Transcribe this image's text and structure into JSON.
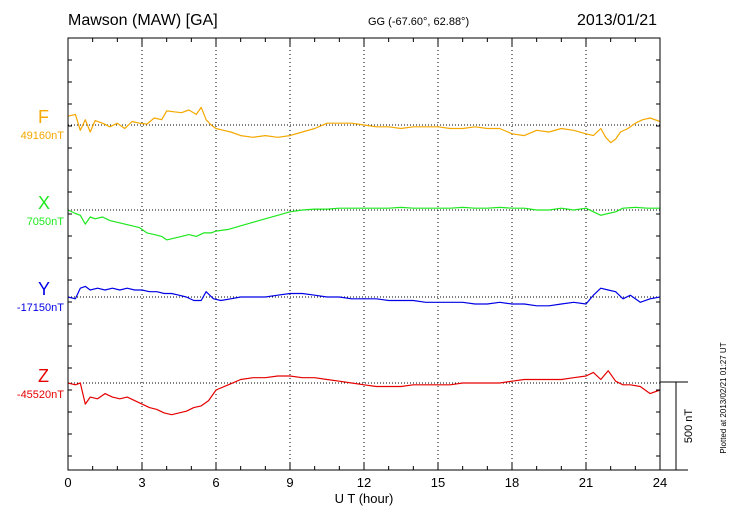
{
  "header": {
    "station": "Mawson (MAW)  [GA]",
    "coords": "GG (-67.60°,  62.88°)",
    "date": "2013/01/21"
  },
  "footer": {
    "plotted": "Plotted at 2013/02/21 01:27 UT"
  },
  "chart_data": {
    "type": "line",
    "xlabel": "U T (hour)",
    "xlim": [
      0,
      24
    ],
    "xticks": [
      "0",
      "3",
      "6",
      "9",
      "12",
      "15",
      "18",
      "21",
      "24"
    ],
    "grid": true,
    "scale_bar": {
      "label": "500 nT",
      "value_nT": 500
    },
    "channels": [
      {
        "name": "F",
        "baseline": "49160nT",
        "color": "#f5a800",
        "x": [
          0,
          0.3,
          0.5,
          0.7,
          0.9,
          1.1,
          1.4,
          1.7,
          2.0,
          2.3,
          2.6,
          2.9,
          3.2,
          3.5,
          3.8,
          4.0,
          4.3,
          4.6,
          4.9,
          5.2,
          5.4,
          5.6,
          5.8,
          6.0,
          6.3,
          6.6,
          7.0,
          7.5,
          8.0,
          8.5,
          9.0,
          9.5,
          10.0,
          10.5,
          11.0,
          11.5,
          12.0,
          12.5,
          13.0,
          13.5,
          14.0,
          14.5,
          15.0,
          15.5,
          16.0,
          16.5,
          17.0,
          17.5,
          18.0,
          18.5,
          19.0,
          19.5,
          20.0,
          20.5,
          21.0,
          21.3,
          21.6,
          21.8,
          22.0,
          22.2,
          22.4,
          22.7,
          23.0,
          23.3,
          23.6,
          24.0
        ],
        "y": [
          50,
          60,
          -30,
          30,
          -40,
          25,
          10,
          -10,
          10,
          -20,
          20,
          10,
          5,
          40,
          30,
          80,
          75,
          70,
          85,
          60,
          100,
          30,
          0,
          -20,
          -30,
          -40,
          -60,
          -70,
          -60,
          -70,
          -60,
          -40,
          -20,
          10,
          10,
          10,
          0,
          -10,
          -10,
          -20,
          -10,
          -10,
          -10,
          -20,
          -20,
          -10,
          -20,
          -20,
          -50,
          -60,
          -30,
          -40,
          -20,
          -30,
          -50,
          -60,
          -20,
          -70,
          -100,
          -80,
          -40,
          -20,
          10,
          30,
          40,
          20
        ]
      },
      {
        "name": "X",
        "baseline": "7050nT",
        "color": "#1ee81e",
        "x": [
          0,
          0.3,
          0.5,
          0.7,
          0.9,
          1.1,
          1.4,
          1.7,
          2.0,
          2.3,
          2.6,
          2.9,
          3.2,
          3.5,
          3.8,
          4.0,
          4.3,
          4.6,
          4.9,
          5.2,
          5.5,
          5.8,
          6.0,
          6.5,
          7.0,
          7.5,
          8.0,
          8.5,
          9.0,
          9.5,
          10.0,
          10.5,
          11.0,
          11.5,
          12.0,
          12.5,
          13.0,
          13.5,
          14.0,
          14.5,
          15.0,
          15.5,
          16.0,
          16.5,
          17.0,
          17.5,
          18.0,
          18.5,
          19.0,
          19.5,
          20.0,
          20.5,
          21.0,
          21.3,
          21.6,
          21.9,
          22.2,
          22.5,
          23.0,
          23.5,
          24.0
        ],
        "y": [
          0,
          -20,
          -30,
          -80,
          -40,
          -50,
          -40,
          -60,
          -70,
          -80,
          -90,
          -100,
          -130,
          -140,
          -150,
          -170,
          -160,
          -150,
          -140,
          -150,
          -130,
          -130,
          -120,
          -110,
          -90,
          -70,
          -50,
          -30,
          -10,
          0,
          5,
          5,
          10,
          10,
          10,
          10,
          10,
          15,
          10,
          10,
          10,
          10,
          15,
          10,
          10,
          15,
          10,
          10,
          0,
          0,
          10,
          0,
          10,
          -10,
          -30,
          -20,
          -10,
          10,
          15,
          10,
          10
        ]
      },
      {
        "name": "Y",
        "baseline": "-17150nT",
        "color": "#0000e6",
        "x": [
          0,
          0.3,
          0.5,
          0.7,
          0.9,
          1.2,
          1.5,
          1.8,
          2.1,
          2.4,
          2.7,
          3.0,
          3.3,
          3.6,
          3.9,
          4.2,
          4.5,
          4.8,
          5.1,
          5.4,
          5.6,
          5.9,
          6.2,
          6.6,
          7.0,
          7.5,
          8.0,
          8.5,
          9.0,
          9.5,
          10.0,
          10.5,
          11.0,
          11.5,
          12.0,
          12.5,
          13.0,
          13.5,
          14.0,
          14.5,
          15.0,
          15.5,
          16.0,
          16.5,
          17.0,
          17.5,
          18.0,
          18.5,
          19.0,
          19.5,
          20.0,
          20.5,
          21.0,
          21.3,
          21.6,
          21.9,
          22.2,
          22.5,
          22.8,
          23.2,
          23.6,
          24.0
        ],
        "y": [
          0,
          -10,
          50,
          60,
          40,
          50,
          40,
          50,
          40,
          50,
          40,
          40,
          30,
          30,
          20,
          20,
          10,
          0,
          -20,
          -20,
          30,
          -10,
          -20,
          -10,
          0,
          0,
          0,
          10,
          20,
          20,
          10,
          0,
          0,
          -10,
          -10,
          -10,
          -20,
          -20,
          -20,
          -30,
          -30,
          -30,
          -30,
          -40,
          -40,
          -30,
          -40,
          -40,
          -50,
          -50,
          -40,
          -30,
          -40,
          10,
          50,
          40,
          30,
          -10,
          10,
          -30,
          -10,
          0
        ]
      },
      {
        "name": "Z",
        "baseline": "-45520nT",
        "color": "#e60000",
        "x": [
          0,
          0.3,
          0.5,
          0.7,
          0.9,
          1.2,
          1.5,
          1.8,
          2.1,
          2.4,
          2.7,
          3.0,
          3.3,
          3.6,
          3.9,
          4.2,
          4.5,
          4.8,
          5.1,
          5.4,
          5.7,
          6.0,
          6.5,
          7.0,
          7.5,
          8.0,
          8.5,
          9.0,
          9.5,
          10.0,
          10.5,
          11.0,
          11.5,
          12.0,
          12.5,
          13.0,
          13.5,
          14.0,
          14.5,
          15.0,
          15.5,
          16.0,
          16.5,
          17.0,
          17.5,
          18.0,
          18.5,
          19.0,
          19.5,
          20.0,
          20.5,
          21.0,
          21.3,
          21.6,
          21.9,
          22.2,
          22.5,
          22.8,
          23.2,
          23.6,
          24.0
        ],
        "y": [
          0,
          -10,
          0,
          -120,
          -80,
          -90,
          -60,
          -80,
          -90,
          -80,
          -100,
          -120,
          -140,
          -150,
          -170,
          -180,
          -170,
          -160,
          -140,
          -130,
          -100,
          -40,
          -10,
          20,
          30,
          30,
          40,
          40,
          30,
          30,
          20,
          10,
          0,
          -10,
          -20,
          -20,
          -20,
          -10,
          -10,
          -10,
          -10,
          0,
          0,
          0,
          0,
          10,
          20,
          20,
          20,
          20,
          30,
          40,
          60,
          20,
          70,
          10,
          -10,
          -10,
          -20,
          -60,
          -40
        ]
      }
    ]
  }
}
